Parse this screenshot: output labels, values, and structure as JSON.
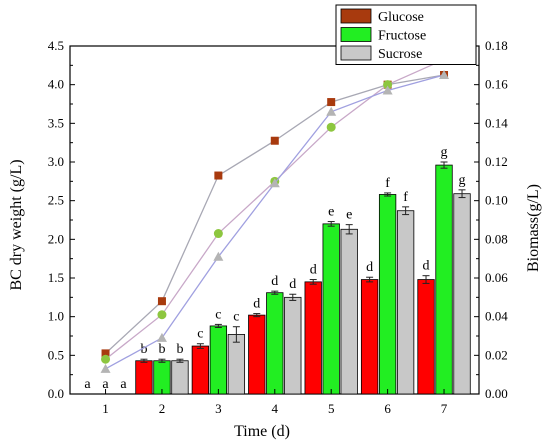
{
  "chart_data": {
    "type": "bar",
    "title": "",
    "xlabel": "Time (d)",
    "ylabel": "BC dry weight (g/L)",
    "y2label": "Biomass(g/L)",
    "categories": [
      "1",
      "2",
      "3",
      "4",
      "5",
      "6",
      "7"
    ],
    "ylim": [
      0,
      4.5
    ],
    "y2lim": [
      0,
      0.18
    ],
    "yticks": [
      "0.0",
      "0.5",
      "1.0",
      "1.5",
      "2.0",
      "2.5",
      "3.0",
      "3.5",
      "4.0",
      "4.5"
    ],
    "y2ticks": [
      "0.00",
      "0.02",
      "0.04",
      "0.06",
      "0.08",
      "0.10",
      "0.12",
      "0.14",
      "0.16",
      "0.18"
    ],
    "legend_position": "top-right",
    "series": [
      {
        "name": "Glucose",
        "color": "#ff0000",
        "legend_color": "#a83a0e",
        "values": [
          0,
          0.43,
          0.62,
          1.02,
          1.45,
          1.48,
          1.48
        ],
        "errors": [
          0,
          0.02,
          0.03,
          0.02,
          0.03,
          0.03,
          0.05
        ],
        "sig_labels": [
          "a",
          "b",
          "c",
          "d",
          "d",
          "d",
          "d"
        ],
        "biomass": [
          0.021,
          0.048,
          0.113,
          0.131,
          0.151,
          0.16,
          0.165
        ],
        "line_color": "#a8a8b4",
        "marker_color": "#a83a0e",
        "marker": "square"
      },
      {
        "name": "Fructose",
        "color": "#22ee22",
        "legend_color": "#22ee22",
        "values": [
          0,
          0.43,
          0.88,
          1.31,
          2.2,
          2.58,
          2.96
        ],
        "errors": [
          0,
          0.02,
          0.02,
          0.02,
          0.03,
          0.02,
          0.04
        ],
        "sig_labels": [
          "a",
          "b",
          "c",
          "d",
          "e",
          "f",
          "g"
        ],
        "biomass": [
          0.018,
          0.041,
          0.083,
          0.11,
          0.138,
          0.16,
          0.173
        ],
        "line_color": "#c8a8c8",
        "marker_color": "#8dc63f",
        "marker": "circle"
      },
      {
        "name": "Sucrose",
        "color": "#c8c8c8",
        "legend_color": "#c8c8c8",
        "values": [
          0,
          0.43,
          0.77,
          1.25,
          2.13,
          2.37,
          2.59
        ],
        "errors": [
          0,
          0.02,
          0.1,
          0.04,
          0.06,
          0.05,
          0.05
        ],
        "sig_labels": [
          "a",
          "b",
          "c",
          "d",
          "e",
          "f",
          "g"
        ],
        "biomass": [
          0.013,
          0.029,
          0.071,
          0.109,
          0.146,
          0.157,
          0.165
        ],
        "line_color": "#a0a0e0",
        "marker_color": "#b4b4b4",
        "marker": "triangle"
      }
    ]
  }
}
